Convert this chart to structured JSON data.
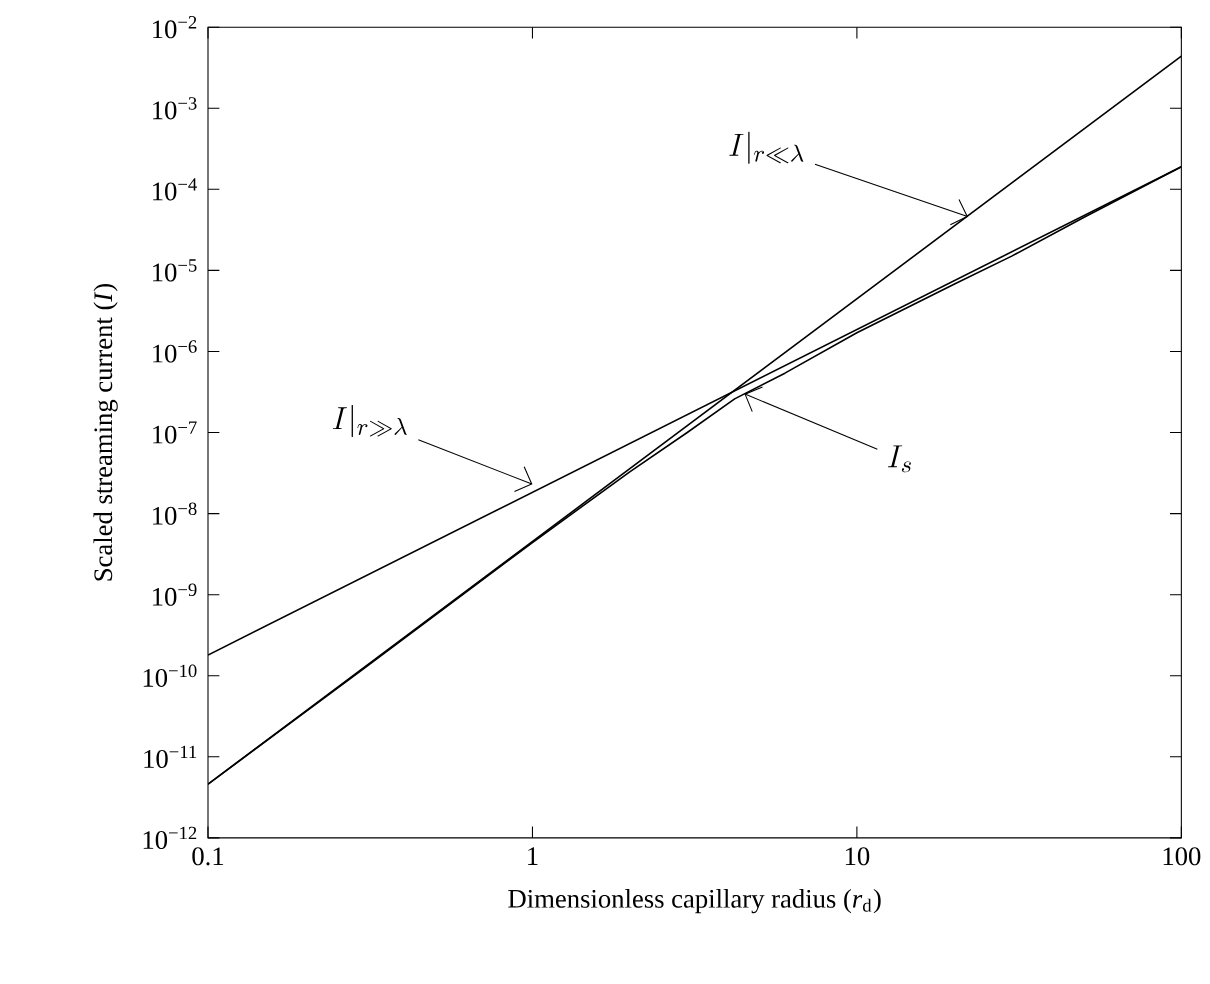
{
  "chart_data": {
    "type": "line",
    "xlabel": "Dimensionless capillary radius (*r*$_{d}$)",
    "ylabel": "Scaled streaming current (*I*)",
    "log": "xy",
    "marker": "none",
    "line_style": "solid",
    "grid": false,
    "xlim": [
      0.1,
      100
    ],
    "ylim": [
      1e-12,
      0.01
    ],
    "xticks": [
      0.1,
      1,
      10,
      100
    ],
    "yticks": [
      {
        "value": 1e-12,
        "label": "10$^{−12}$"
      },
      {
        "value": 1e-11,
        "label": "10$^{−11}$"
      },
      {
        "value": 1e-10,
        "label": "10$^{−10}$"
      },
      {
        "value": 1e-09,
        "label": "10$^{−9}$"
      },
      {
        "value": 1e-08,
        "label": "10$^{−8}$"
      },
      {
        "value": 1e-07,
        "label": "10$^{−7}$"
      },
      {
        "value": 1e-06,
        "label": "10$^{−6}$"
      },
      {
        "value": 1e-05,
        "label": "10$^{−5}$"
      },
      {
        "value": 0.0001,
        "label": "10$^{−4}$"
      },
      {
        "value": 0.001,
        "label": "10$^{−3}$"
      },
      {
        "value": 0.01,
        "label": "10$^{−2}$"
      }
    ],
    "series": [
      {
        "color": "#000000",
        "x": [
          0.1,
          100
        ],
        "values": [
          4.6e-12,
          0.0044
        ]
      },
      {
        "color": "#000000",
        "x": [
          0.1,
          100
        ],
        "values": [
          1.8e-10,
          0.00019
        ]
      },
      {
        "color": "#000000",
        "x": [
          0.1,
          0.3,
          1,
          2,
          3,
          4.2,
          6,
          10,
          20,
          30,
          50,
          100
        ],
        "values": [
          4.6e-12,
          1.2e-10,
          4.4e-09,
          3.3e-08,
          1e-07,
          2.6e-07,
          5.4e-07,
          1.7e-06,
          6.8e-06,
          1.5e-05,
          4.5e-05,
          0.00019
        ]
      }
    ],
    "annotations": [
      {
        "text": "I|_{r\\ll\\lambda}",
        "x": 22,
        "y": 4.6e-05
      },
      {
        "text": "I|_{r\\gg\\lambda}",
        "x": 1,
        "y": 2.3e-08
      },
      {
        "text": "I_s",
        "x": 4.5,
        "y": 3e-07
      }
    ]
  }
}
